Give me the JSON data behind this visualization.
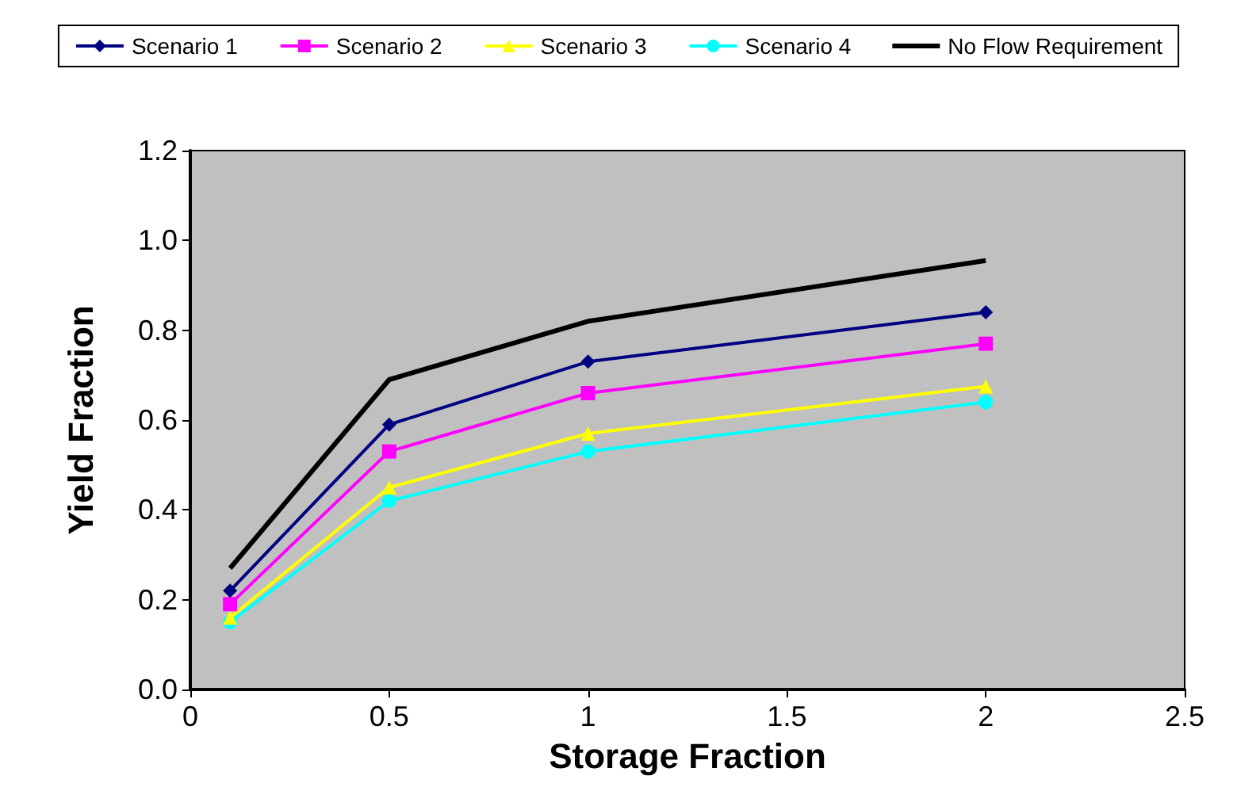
{
  "chart_data": {
    "type": "line",
    "xlabel": "Storage Fraction",
    "ylabel": "Yield Fraction",
    "x": [
      0.1,
      0.5,
      1,
      2
    ],
    "xlim": [
      0,
      2.5
    ],
    "xticks": [
      0,
      0.5,
      1,
      1.5,
      2,
      2.5
    ],
    "ylim": [
      0,
      1.2
    ],
    "yticks": [
      {
        "value": 0,
        "label": "0.0"
      },
      {
        "value": 0.2,
        "label": "0.2"
      },
      {
        "value": 0.4,
        "label": "0.4"
      },
      {
        "value": 0.6,
        "label": "0.6"
      },
      {
        "value": 0.8,
        "label": "0.8"
      },
      {
        "value": 1,
        "label": "1.0"
      },
      {
        "value": 1.2,
        "label": "1.2"
      }
    ],
    "grid": false,
    "legend": "top",
    "line_style": "solid",
    "series": [
      {
        "name": "Scenario 1",
        "color": "#000080",
        "marker": "diamond",
        "values": [
          0.22,
          0.59,
          0.73,
          0.84
        ]
      },
      {
        "name": "Scenario 2",
        "color": "#ff00ff",
        "marker": "square",
        "values": [
          0.19,
          0.53,
          0.66,
          0.77
        ]
      },
      {
        "name": "Scenario 3",
        "color": "#ffff00",
        "marker": "triangle",
        "values": [
          0.16,
          0.45,
          0.57,
          0.675
        ]
      },
      {
        "name": "Scenario 4",
        "color": "#00ffff",
        "marker": "circle",
        "values": [
          0.15,
          0.42,
          0.53,
          0.64
        ]
      },
      {
        "name": "No Flow Requirement",
        "color": "#000000",
        "marker": "none",
        "values": [
          0.27,
          0.69,
          0.82,
          0.955
        ]
      }
    ]
  }
}
